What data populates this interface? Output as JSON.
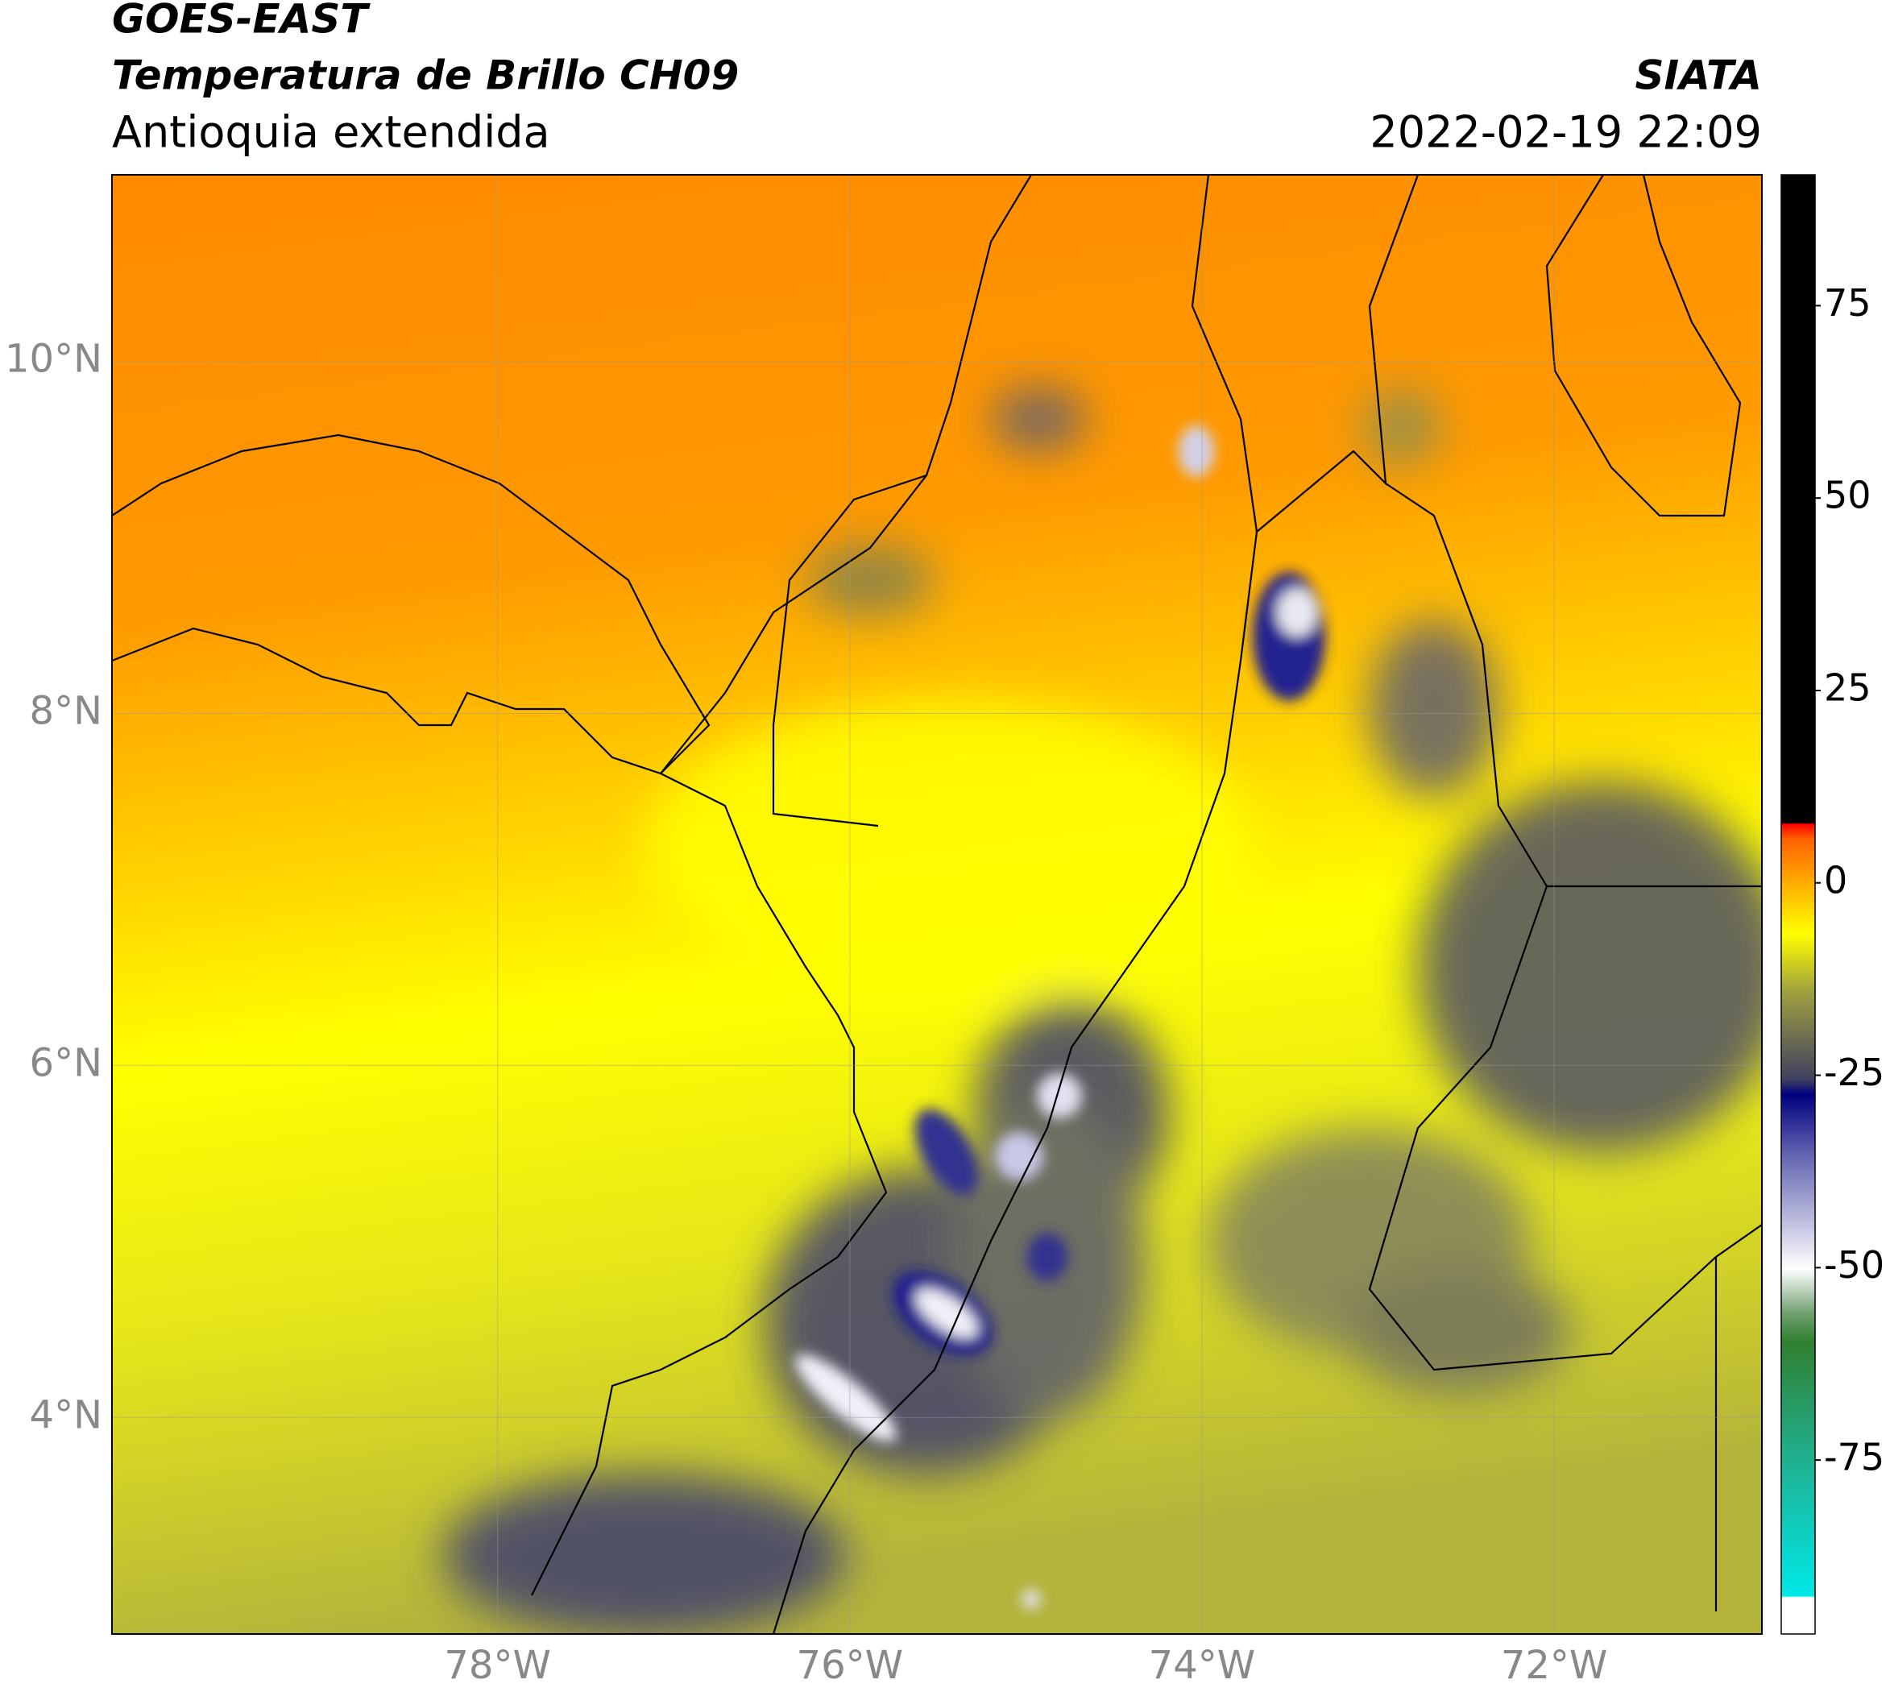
{
  "header": {
    "title": "GOES-EAST",
    "subtitle": "Temperatura de Brillo CH09",
    "region": "Antioquia extendida",
    "source": "SIATA",
    "datetime": "2022-02-19 22:09"
  },
  "map": {
    "xlim": [
      -80.19,
      -70.82
    ],
    "ylim": [
      2.77,
      11.06
    ],
    "xticks": [
      {
        "value": -78,
        "label": "78°W"
      },
      {
        "value": -76,
        "label": "76°W"
      },
      {
        "value": -74,
        "label": "74°W"
      },
      {
        "value": -72,
        "label": "72°W"
      }
    ],
    "yticks": [
      {
        "value": 4,
        "label": "4°N"
      },
      {
        "value": 6,
        "label": "6°N"
      },
      {
        "value": 8,
        "label": "8°N"
      },
      {
        "value": 10,
        "label": "10°N"
      }
    ],
    "grid": true
  },
  "colorbar": {
    "lim": [
      -97.6,
      92
    ],
    "ticks": [
      -75,
      -50,
      -25,
      0,
      25,
      50,
      75
    ]
  }
}
